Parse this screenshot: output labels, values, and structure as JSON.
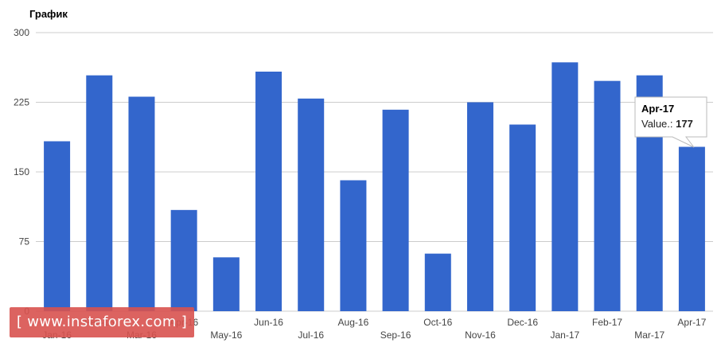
{
  "chart_data": {
    "type": "bar",
    "title": "График",
    "categories": [
      "Jan-16",
      "Feb-16",
      "Mar-16",
      "Apr-16",
      "May-16",
      "Jun-16",
      "Jul-16",
      "Aug-16",
      "Sep-16",
      "Oct-16",
      "Nov-16",
      "Dec-16",
      "Jan-17",
      "Feb-17",
      "Mar-17",
      "Apr-17"
    ],
    "values": [
      183,
      254,
      231,
      109,
      58,
      258,
      229,
      141,
      217,
      62,
      225,
      201,
      268,
      248,
      254,
      177
    ],
    "ylim": [
      0,
      300
    ],
    "yticks": [
      0,
      75,
      150,
      225,
      300
    ],
    "xlabel": "",
    "ylabel": "",
    "bar_color": "#3366cc",
    "grid": true,
    "tooltip": {
      "title": "Apr-17",
      "label": "Value.:",
      "value": "177"
    }
  },
  "watermark": {
    "left_bracket": "[",
    "text": "www.instaforex.com",
    "right_bracket": "]"
  }
}
